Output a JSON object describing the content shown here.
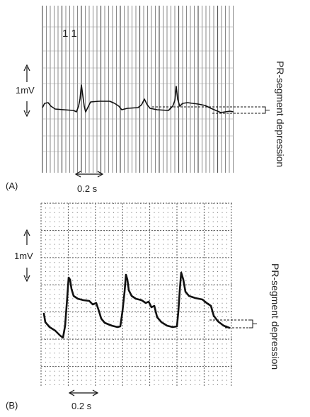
{
  "panel_a": {
    "letter": "(A)",
    "scale_time": "0.2 s",
    "scale_voltage": "1mV",
    "annotation": "PR-segment depression",
    "lead_mark": "1 1"
  },
  "panel_b": {
    "letter": "(B)",
    "scale_time": "0.2 s",
    "scale_voltage": "1mV",
    "annotation": "PR-segment depression"
  },
  "colors": {
    "trace": "#111111",
    "grid": "#555555",
    "text": "#222222"
  }
}
